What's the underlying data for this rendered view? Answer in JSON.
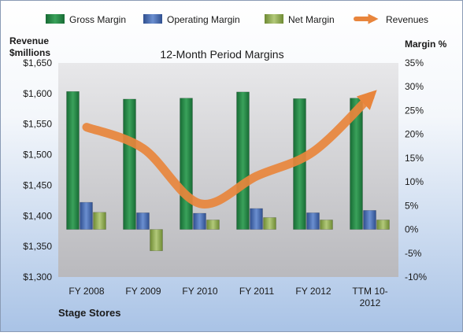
{
  "chart_data": {
    "type": "bar",
    "title": "12-Month Period Margins",
    "company": "Stage Stores",
    "categories": [
      "FY 2008",
      "FY 2009",
      "FY 2010",
      "FY 2011",
      "FY 2012",
      "TTM 10-2012"
    ],
    "y_left": {
      "label_line1": "Revenue",
      "label_line2": "$millions",
      "min": 1300,
      "max": 1650,
      "step": 50,
      "ticks": [
        "$1,300",
        "$1,350",
        "$1,400",
        "$1,450",
        "$1,500",
        "$1,550",
        "$1,600",
        "$1,650"
      ]
    },
    "y_right": {
      "label": "Margin %",
      "min": -10,
      "max": 35,
      "step": 5,
      "ticks": [
        "-10%",
        "-5%",
        "0%",
        "5%",
        "10%",
        "15%",
        "20%",
        "25%",
        "30%",
        "35%"
      ]
    },
    "series": [
      {
        "name": "Gross Margin",
        "axis": "right",
        "color": "#2e8b4a",
        "values": [
          29.0,
          27.4,
          27.6,
          28.9,
          27.5,
          27.6
        ]
      },
      {
        "name": "Operating Margin",
        "axis": "right",
        "color": "#4f72b8",
        "values": [
          5.7,
          3.5,
          3.4,
          4.4,
          3.5,
          4.0
        ]
      },
      {
        "name": "Net Margin",
        "axis": "right",
        "color": "#98b25a",
        "values": [
          3.6,
          -4.5,
          2.0,
          2.5,
          2.0,
          2.0
        ]
      },
      {
        "name": "Revenues",
        "axis": "left",
        "color": "#e8853c",
        "values": [
          1545,
          1510,
          1420,
          1465,
          1505,
          1595
        ]
      }
    ],
    "legend_position": "top",
    "grid": false
  }
}
